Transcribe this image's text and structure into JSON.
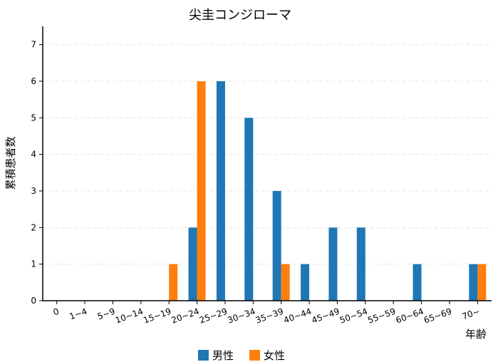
{
  "chart_data": {
    "type": "bar",
    "title": "尖圭コンジローマ",
    "xlabel": "年齢",
    "ylabel": "累積患者数",
    "categories": [
      "0",
      "1~4",
      "5~9",
      "10~14",
      "15~19",
      "20~24",
      "25~29",
      "30~34",
      "35~39",
      "40~44",
      "45~49",
      "50~54",
      "55~59",
      "60~64",
      "65~69",
      "70~"
    ],
    "ylim": [
      0,
      7.5
    ],
    "yticks": [
      0,
      1,
      2,
      3,
      4,
      5,
      6,
      7
    ],
    "grid": "horizontal dashed",
    "legend_position": "bottom",
    "series": [
      {
        "name": "男性",
        "color": "#1f77b4",
        "values": [
          0,
          0,
          0,
          0,
          0,
          2,
          6,
          5,
          3,
          1,
          2,
          2,
          0,
          1,
          0,
          1
        ]
      },
      {
        "name": "女性",
        "color": "#ff7f0e",
        "values": [
          0,
          0,
          0,
          0,
          1,
          6,
          0,
          0,
          1,
          0,
          0,
          0,
          0,
          0,
          0,
          1
        ]
      }
    ]
  }
}
